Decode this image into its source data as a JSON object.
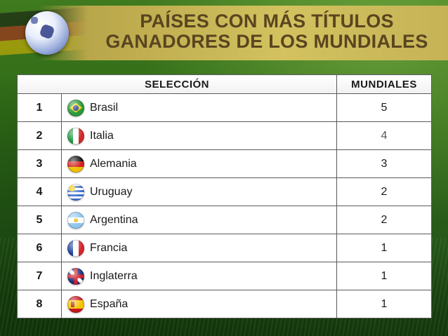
{
  "title": {
    "line1": "PAÍSES CON MÁS TÍTULOS",
    "line2": "GANADORES DE LOS MUNDIALES"
  },
  "table": {
    "header_team": "SELECCIÓN",
    "header_count": "MUNDIALES",
    "rows": [
      {
        "rank": "1",
        "team": "Brasil",
        "flag_icon": "brazil-flag-icon",
        "count": "5"
      },
      {
        "rank": "2",
        "team": "Italia",
        "flag_icon": "italy-flag-icon",
        "count": "4"
      },
      {
        "rank": "3",
        "team": "Alemania",
        "flag_icon": "germany-flag-icon",
        "count": "3"
      },
      {
        "rank": "4",
        "team": "Uruguay",
        "flag_icon": "uruguay-flag-icon",
        "count": "2"
      },
      {
        "rank": "5",
        "team": "Argentina",
        "flag_icon": "argentina-flag-icon",
        "count": "2"
      },
      {
        "rank": "6",
        "team": "Francia",
        "flag_icon": "france-flag-icon",
        "count": "1"
      },
      {
        "rank": "7",
        "team": "Inglaterra",
        "flag_icon": "england-flag-icon",
        "count": "1"
      },
      {
        "rank": "8",
        "team": "España",
        "flag_icon": "spain-flag-icon",
        "count": "1"
      }
    ]
  },
  "colors": {
    "title_text": "#5a4520",
    "title_band": "#d3c25f",
    "background_green": "#2f6a17"
  }
}
